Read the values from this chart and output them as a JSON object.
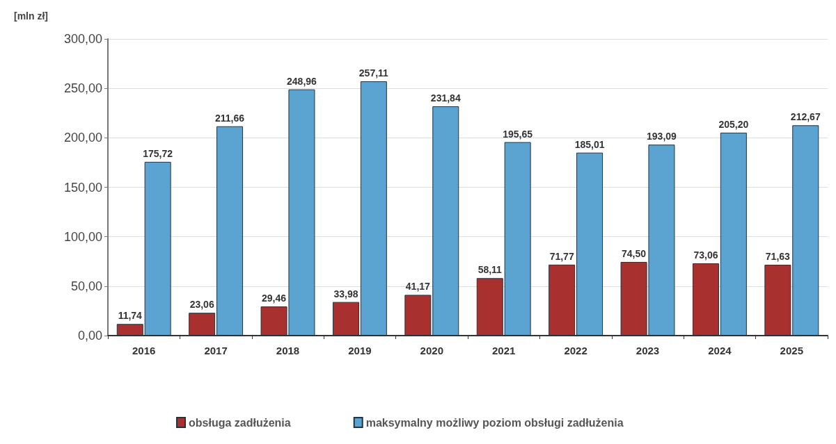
{
  "chart_data": {
    "type": "bar",
    "ylabel": "[mln zł]",
    "categories": [
      "2016",
      "2017",
      "2018",
      "2019",
      "2020",
      "2021",
      "2022",
      "2023",
      "2024",
      "2025"
    ],
    "series": [
      {
        "name": "obsługa zadłużenia",
        "color": "#a8302e",
        "values": [
          11.74,
          23.06,
          29.46,
          33.98,
          41.17,
          58.11,
          71.77,
          74.5,
          73.06,
          71.63
        ],
        "value_labels": [
          "11,74",
          "23,06",
          "29,46",
          "33,98",
          "41,17",
          "58,11",
          "71,77",
          "74,50",
          "73,06",
          "71,63"
        ]
      },
      {
        "name": "maksymalny możliwy poziom obsługi zadłużenia",
        "color": "#5ba3d0",
        "values": [
          175.72,
          211.66,
          248.96,
          257.11,
          231.84,
          195.65,
          185.01,
          193.09,
          205.2,
          212.67
        ],
        "value_labels": [
          "175,72",
          "211,66",
          "248,96",
          "257,11",
          "231,84",
          "195,65",
          "185,01",
          "193,09",
          "205,20",
          "212,67"
        ]
      }
    ],
    "ylim": [
      0,
      300
    ],
    "yticks": [
      {
        "value": 0,
        "label": "0,00"
      },
      {
        "value": 50,
        "label": "50,00"
      },
      {
        "value": 100,
        "label": "100,00"
      },
      {
        "value": 150,
        "label": "150,00"
      },
      {
        "value": 200,
        "label": "200,00"
      },
      {
        "value": 250,
        "label": "250,00"
      },
      {
        "value": 300,
        "label": "300,00"
      }
    ],
    "grid": "y",
    "legend": "bottom"
  }
}
